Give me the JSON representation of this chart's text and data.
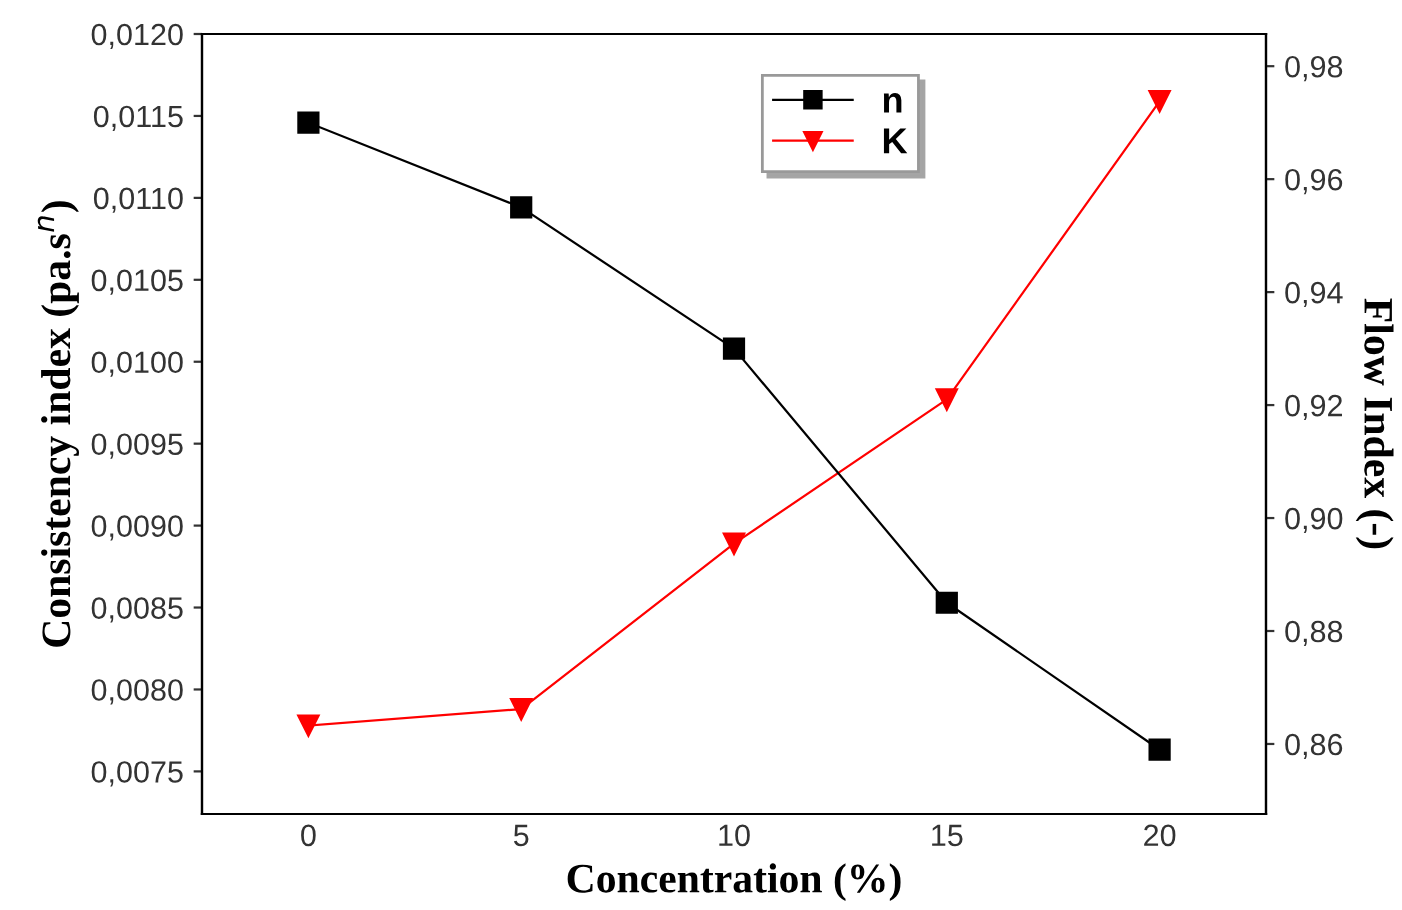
{
  "chart_data": {
    "type": "line",
    "xlabel": "Concentration (%)",
    "ylabel": "Consistency index (pa.s$^{n}$)",
    "y2label": "Flow Index (-)",
    "x": [
      0,
      5,
      10,
      15,
      20
    ],
    "series": [
      {
        "name": "n",
        "color": "#000000",
        "marker": "square",
        "axis": "y2",
        "values": [
          0.97,
          0.955,
          0.93,
          0.885,
          0.859
        ]
      },
      {
        "name": "K",
        "color": "#ff0000",
        "marker": "triangle",
        "axis": "y",
        "values": [
          0.00778,
          0.00788,
          0.00889,
          0.00977,
          0.01159
        ]
      }
    ],
    "xlim": [
      -2.5,
      22.5
    ],
    "xticks": [
      0,
      5,
      10,
      15,
      20
    ],
    "ylim": [
      0.00724,
      0.012
    ],
    "yticks": [
      {
        "value": 0.0075,
        "label": "0,0075"
      },
      {
        "value": 0.008,
        "label": "0,0080"
      },
      {
        "value": 0.0085,
        "label": "0,0085"
      },
      {
        "value": 0.009,
        "label": "0,0090"
      },
      {
        "value": 0.0095,
        "label": "0,0095"
      },
      {
        "value": 0.01,
        "label": "0,0100"
      },
      {
        "value": 0.0105,
        "label": "0,0105"
      },
      {
        "value": 0.011,
        "label": "0,0110"
      },
      {
        "value": 0.0115,
        "label": "0,0115"
      },
      {
        "value": 0.012,
        "label": "0,0120"
      }
    ],
    "y2lim": [
      0.8476,
      0.9857
    ],
    "y2ticks": [
      {
        "value": 0.86,
        "label": "0,86"
      },
      {
        "value": 0.88,
        "label": "0,88"
      },
      {
        "value": 0.9,
        "label": "0,90"
      },
      {
        "value": 0.92,
        "label": "0,92"
      },
      {
        "value": 0.94,
        "label": "0,94"
      },
      {
        "value": 0.96,
        "label": "0,96"
      },
      {
        "value": 0.98,
        "label": "0,98"
      }
    ],
    "grid": false,
    "legend": "top",
    "line_style": "solid"
  }
}
